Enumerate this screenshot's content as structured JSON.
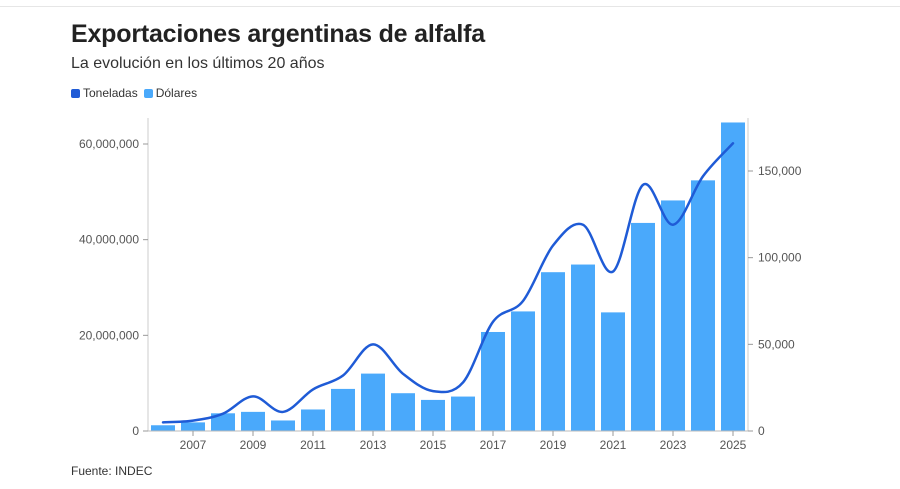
{
  "header": {
    "title": "Exportaciones argentinas de alfalfa",
    "subtitle": "La evolución en los últimos 20 años"
  },
  "legend": [
    {
      "label": "Toneladas",
      "color": "#1f5bd6"
    },
    {
      "label": "Dólares",
      "color": "#4aa9fb"
    }
  ],
  "source": "Fuente: INDEC",
  "chart_data": {
    "type": "bar",
    "x": [
      2006,
      2007,
      2008,
      2009,
      2010,
      2011,
      2012,
      2013,
      2014,
      2015,
      2016,
      2017,
      2018,
      2019,
      2020,
      2021,
      2022,
      2023,
      2024,
      2025
    ],
    "x_tick_labels": [
      "2007",
      "2009",
      "2011",
      "2013",
      "2015",
      "2017",
      "2019",
      "2021",
      "2023",
      "2025"
    ],
    "left_axis": {
      "min": 0,
      "max": 60000000,
      "ticks": [
        "0",
        "20,000,000",
        "40,000,000",
        "60,000,000"
      ],
      "tick_values": [
        0,
        20000000,
        40000000,
        60000000
      ]
    },
    "right_axis": {
      "min": 0,
      "max": 150000,
      "ticks": [
        "0",
        "50,000",
        "100,000",
        "150,000"
      ],
      "tick_values": [
        0,
        50000,
        100000,
        150000
      ]
    },
    "series": [
      {
        "name": "Dólares",
        "type": "bar",
        "axis": "left",
        "color": "#4aa9fb",
        "values": [
          1200000,
          1800000,
          3700000,
          4000000,
          2200000,
          4500000,
          8800000,
          12000000,
          7900000,
          6500000,
          7200000,
          20700000,
          25000000,
          33200000,
          34800000,
          24800000,
          43500000,
          48200000,
          52400000,
          64500000
        ]
      },
      {
        "name": "Toneladas",
        "type": "line",
        "axis": "right",
        "color": "#1f5bd6",
        "values": [
          5000,
          6000,
          10000,
          20000,
          11000,
          24000,
          32000,
          50000,
          33000,
          23000,
          28000,
          63000,
          75000,
          107000,
          119000,
          92000,
          142000,
          119000,
          147000,
          166000
        ]
      }
    ],
    "grid": false
  }
}
